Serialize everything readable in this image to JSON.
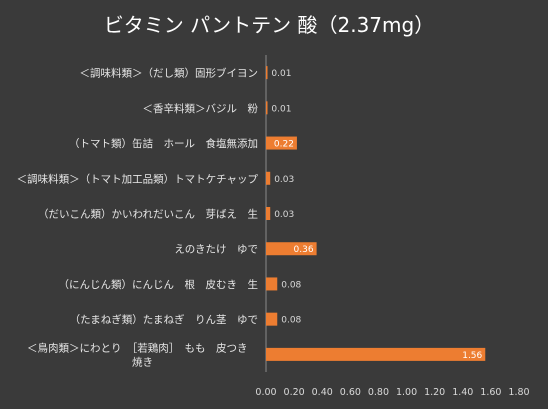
{
  "chart_data": {
    "type": "bar",
    "orientation": "horizontal",
    "title": "ビタミン パントテン 酸（2.37mg）",
    "categories": [
      "＜調味料類＞（だし類）固形ブイヨン",
      "＜香辛料類＞バジル　粉",
      "（トマト類）缶詰　ホール　食塩無添加",
      "＜調味料類＞（トマト加工品類）トマトケチャップ",
      "（だいこん類）かいわれだいこん　芽ばえ　生",
      "えのきたけ　ゆで",
      "（にんじん類）にんじん　根　皮むき　生",
      "（たまねぎ類）たまねぎ　りん茎　ゆで",
      "＜鳥肉類＞にわとり　［若鶏肉］　もも　皮つき　焼き"
    ],
    "values": [
      0.01,
      0.01,
      0.22,
      0.03,
      0.03,
      0.36,
      0.08,
      0.08,
      1.56
    ],
    "data_labels": [
      "0.01",
      "0.01",
      "0.22",
      "0.03",
      "0.03",
      "0.36",
      "0.08",
      "0.08",
      "1.56"
    ],
    "xlim": [
      0,
      1.8
    ],
    "xticks": [
      "0.00",
      "0.20",
      "0.40",
      "0.60",
      "0.80",
      "1.00",
      "1.20",
      "1.40",
      "1.60",
      "1.80"
    ],
    "bar_color": "#ed7d31",
    "background_color": "#3a3a3a",
    "grid": false,
    "legend": "none"
  }
}
